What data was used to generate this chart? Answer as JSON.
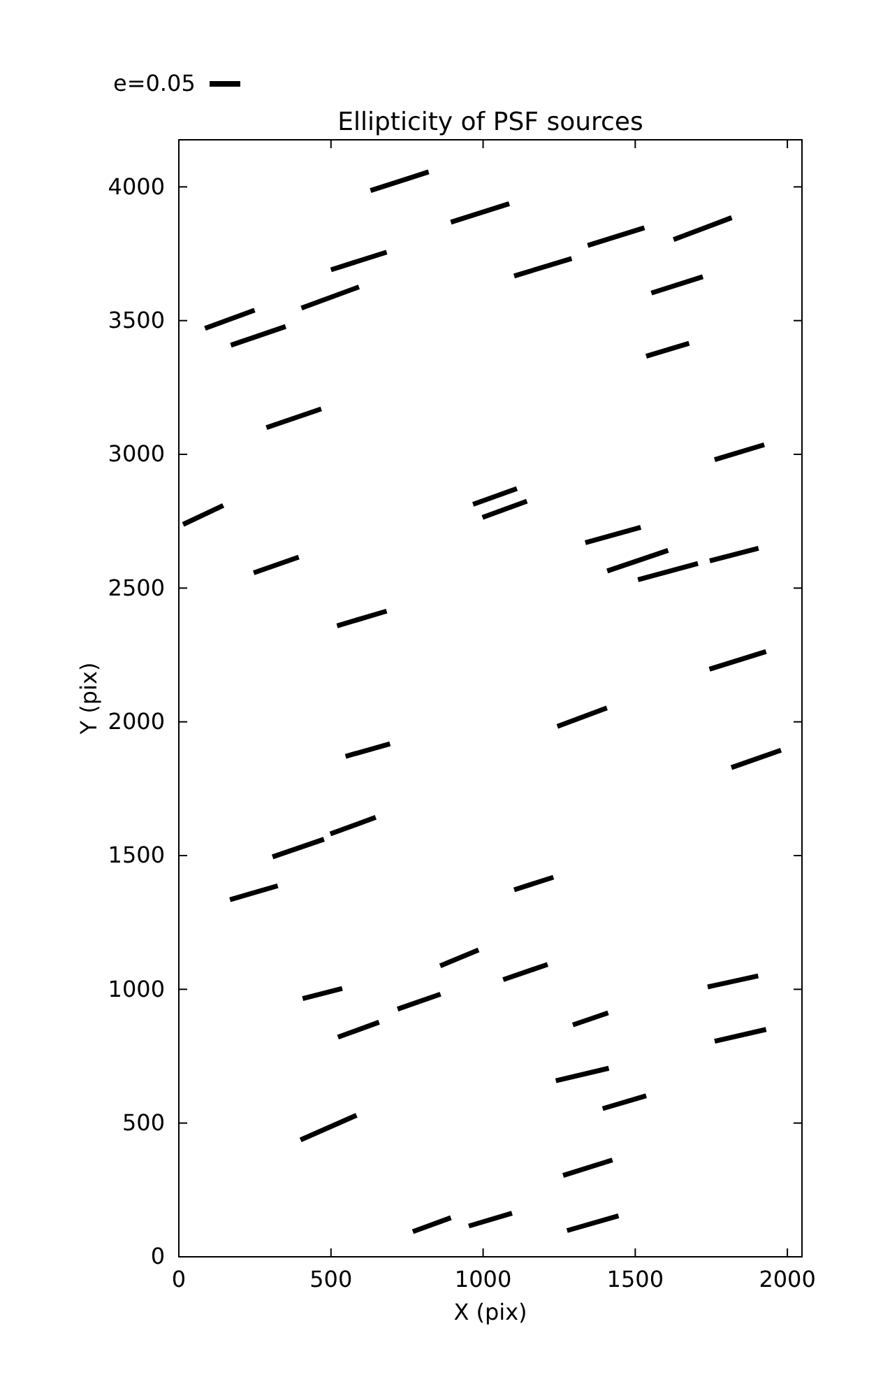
{
  "chart_data": {
    "type": "line",
    "title": "Ellipticity of PSF sources",
    "xlabel": "X (pix)",
    "ylabel": "Y (pix)",
    "annotations": [
      "e=0.05"
    ],
    "xlim": [
      0,
      2048
    ],
    "ylim": [
      0,
      4176
    ],
    "xticks": [
      0,
      500,
      1000,
      1500,
      2000
    ],
    "yticks": [
      0,
      500,
      1000,
      1500,
      2000,
      2500,
      3000,
      3500,
      4000
    ],
    "grid": false,
    "marker": "none",
    "line_style": "solid",
    "series": [
      {
        "color": "#000000",
        "x": [
          630,
          821
        ],
        "values": [
          3986,
          4056
        ]
      },
      {
        "color": "#000000",
        "x": [
          500,
          683
        ],
        "values": [
          3690,
          3756
        ]
      },
      {
        "color": "#000000",
        "x": [
          403,
          592
        ],
        "values": [
          3547,
          3626
        ]
      },
      {
        "color": "#000000",
        "x": [
          86,
          249
        ],
        "values": [
          3471,
          3539
        ]
      },
      {
        "color": "#000000",
        "x": [
          171,
          351
        ],
        "values": [
          3408,
          3478
        ]
      },
      {
        "color": "#000000",
        "x": [
          288,
          468
        ],
        "values": [
          3100,
          3170
        ]
      },
      {
        "color": "#000000",
        "x": [
          14,
          146
        ],
        "values": [
          2738,
          2809
        ]
      },
      {
        "color": "#000000",
        "x": [
          246,
          394
        ],
        "values": [
          2557,
          2616
        ]
      },
      {
        "color": "#000000",
        "x": [
          894,
          1086
        ],
        "values": [
          3868,
          3937
        ]
      },
      {
        "color": "#000000",
        "x": [
          1344,
          1530
        ],
        "values": [
          3781,
          3847
        ]
      },
      {
        "color": "#000000",
        "x": [
          1626,
          1817
        ],
        "values": [
          3803,
          3885
        ]
      },
      {
        "color": "#000000",
        "x": [
          1102,
          1291
        ],
        "values": [
          3667,
          3732
        ]
      },
      {
        "color": "#000000",
        "x": [
          1553,
          1722
        ],
        "values": [
          3603,
          3664
        ]
      },
      {
        "color": "#000000",
        "x": [
          1536,
          1677
        ],
        "values": [
          3367,
          3415
        ]
      },
      {
        "color": "#000000",
        "x": [
          1761,
          1924
        ],
        "values": [
          2980,
          3036
        ]
      },
      {
        "color": "#000000",
        "x": [
          967,
          1111
        ],
        "values": [
          2813,
          2872
        ]
      },
      {
        "color": "#000000",
        "x": [
          998,
          1144
        ],
        "values": [
          2764,
          2825
        ]
      },
      {
        "color": "#000000",
        "x": [
          1336,
          1518
        ],
        "values": [
          2670,
          2727
        ]
      },
      {
        "color": "#000000",
        "x": [
          1408,
          1608
        ],
        "values": [
          2564,
          2641
        ]
      },
      {
        "color": "#000000",
        "x": [
          1509,
          1706
        ],
        "values": [
          2531,
          2592
        ]
      },
      {
        "color": "#000000",
        "x": [
          1745,
          1905
        ],
        "values": [
          2602,
          2649
        ]
      },
      {
        "color": "#000000",
        "x": [
          520,
          683
        ],
        "values": [
          2359,
          2414
        ]
      },
      {
        "color": "#000000",
        "x": [
          548,
          694
        ],
        "values": [
          1871,
          1918
        ]
      },
      {
        "color": "#000000",
        "x": [
          308,
          477
        ],
        "values": [
          1495,
          1561
        ]
      },
      {
        "color": "#000000",
        "x": [
          498,
          647
        ],
        "values": [
          1581,
          1643
        ]
      },
      {
        "color": "#000000",
        "x": [
          168,
          325
        ],
        "values": [
          1335,
          1387
        ]
      },
      {
        "color": "#000000",
        "x": [
          407,
          537
        ],
        "values": [
          965,
          1003
        ]
      },
      {
        "color": "#000000",
        "x": [
          523,
          658
        ],
        "values": [
          821,
          877
        ]
      },
      {
        "color": "#000000",
        "x": [
          719,
          860
        ],
        "values": [
          926,
          982
        ]
      },
      {
        "color": "#000000",
        "x": [
          400,
          584
        ],
        "values": [
          437,
          529
        ]
      },
      {
        "color": "#000000",
        "x": [
          769,
          894
        ],
        "values": [
          94,
          146
        ]
      },
      {
        "color": "#000000",
        "x": [
          1744,
          1930
        ],
        "values": [
          2197,
          2263
        ]
      },
      {
        "color": "#000000",
        "x": [
          1244,
          1407
        ],
        "values": [
          1983,
          2052
        ]
      },
      {
        "color": "#000000",
        "x": [
          1816,
          1979
        ],
        "values": [
          1829,
          1894
        ]
      },
      {
        "color": "#000000",
        "x": [
          1102,
          1231
        ],
        "values": [
          1372,
          1419
        ]
      },
      {
        "color": "#000000",
        "x": [
          859,
          985
        ],
        "values": [
          1088,
          1147
        ]
      },
      {
        "color": "#000000",
        "x": [
          1066,
          1212
        ],
        "values": [
          1036,
          1093
        ]
      },
      {
        "color": "#000000",
        "x": [
          1738,
          1904
        ],
        "values": [
          1009,
          1050
        ]
      },
      {
        "color": "#000000",
        "x": [
          1295,
          1411
        ],
        "values": [
          867,
          912
        ]
      },
      {
        "color": "#000000",
        "x": [
          1761,
          1930
        ],
        "values": [
          806,
          850
        ]
      },
      {
        "color": "#000000",
        "x": [
          1239,
          1413
        ],
        "values": [
          658,
          705
        ]
      },
      {
        "color": "#000000",
        "x": [
          1393,
          1536
        ],
        "values": [
          554,
          602
        ]
      },
      {
        "color": "#000000",
        "x": [
          1263,
          1425
        ],
        "values": [
          304,
          362
        ]
      },
      {
        "color": "#000000",
        "x": [
          953,
          1095
        ],
        "values": [
          115,
          163
        ]
      },
      {
        "color": "#000000",
        "x": [
          1276,
          1445
        ],
        "values": [
          98,
          153
        ]
      }
    ]
  }
}
